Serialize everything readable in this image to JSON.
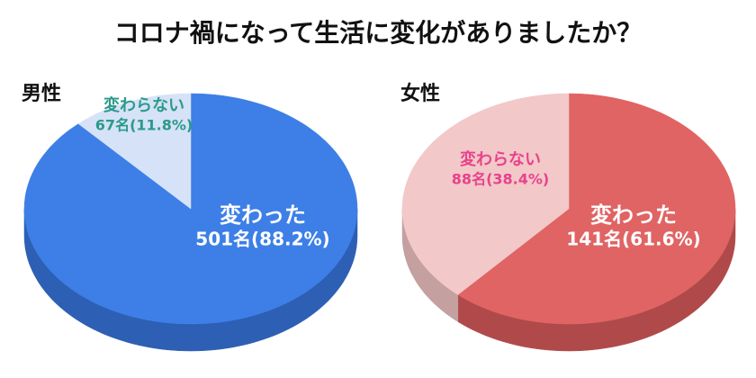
{
  "title": "コロナ禍になって生活に変化がありましたか？",
  "chart_data": [
    {
      "type": "pie",
      "subtitle": "男性",
      "categories": [
        "変わった",
        "変わらない"
      ],
      "values": [
        88.2,
        11.8
      ],
      "value_labels": [
        "501名(88.2%)",
        "67名(11.8%)"
      ],
      "colors": [
        "#3d7fe6",
        "#d6e2f7"
      ],
      "side_colors": [
        "#2d5fb4",
        "#a9b6cc"
      ],
      "label_colors": [
        "#ffffff",
        "#2a9a8a"
      ]
    },
    {
      "type": "pie",
      "subtitle": "女性",
      "categories": [
        "変わった",
        "変わらない"
      ],
      "values": [
        61.6,
        38.4
      ],
      "value_labels": [
        "141名(61.6%)",
        "88名(38.4%)"
      ],
      "colors": [
        "#e06464",
        "#f2c8c8"
      ],
      "side_colors": [
        "#b04a4a",
        "#c4a0a0"
      ],
      "label_colors": [
        "#ffffff",
        "#e8428c"
      ]
    }
  ]
}
